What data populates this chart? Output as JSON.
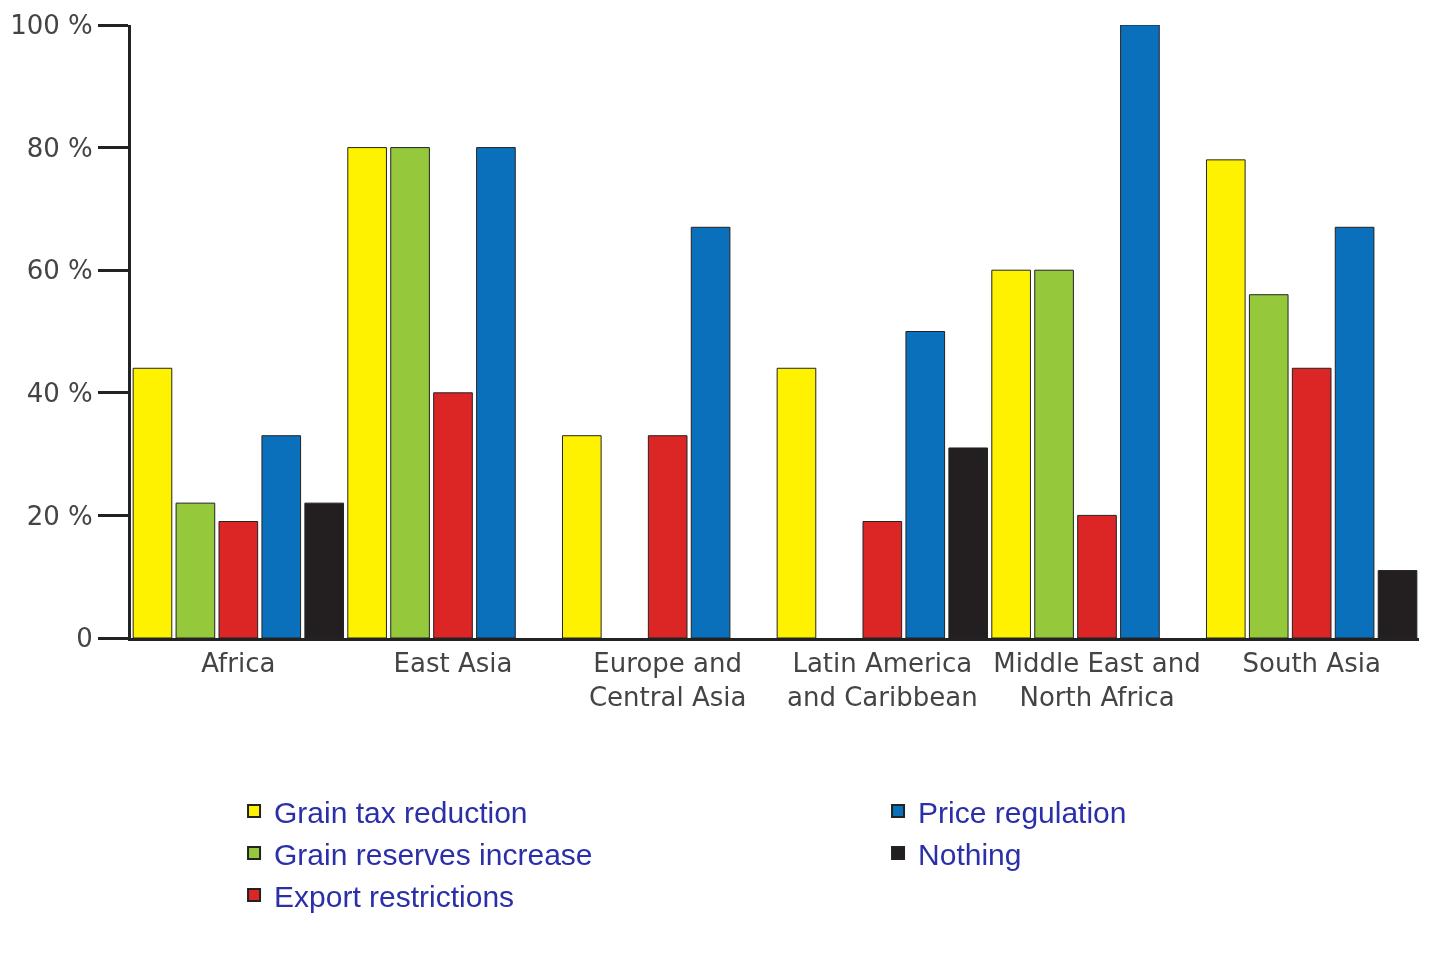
{
  "chart_data": {
    "type": "bar",
    "categories": [
      "Africa",
      "East Asia",
      "Europe and\nCentral Asia",
      "Latin America\nand Caribbean",
      "Middle East and\nNorth Africa",
      "South Asia"
    ],
    "series": [
      {
        "name": "Grain tax reduction",
        "color": "#fff200",
        "values": [
          44,
          80,
          33,
          44,
          60,
          78
        ]
      },
      {
        "name": "Grain reserves increase",
        "color": "#96c83c",
        "values": [
          22,
          80,
          null,
          null,
          60,
          56
        ]
      },
      {
        "name": "Export restrictions",
        "color": "#dc2626",
        "values": [
          19,
          40,
          33,
          19,
          20,
          44
        ]
      },
      {
        "name": "Price regulation",
        "color": "#0b70bb",
        "values": [
          33,
          80,
          67,
          50,
          100,
          67
        ]
      },
      {
        "name": "Nothing",
        "color": "#231f20",
        "values": [
          22,
          null,
          null,
          31,
          null,
          11
        ]
      }
    ],
    "ylim": [
      0,
      100
    ],
    "yticks": [
      {
        "value": 0,
        "label": "0"
      },
      {
        "value": 20,
        "label": "20 %"
      },
      {
        "value": 40,
        "label": "40 %"
      },
      {
        "value": 60,
        "label": "60 %"
      },
      {
        "value": 80,
        "label": "80 %"
      },
      {
        "value": 100,
        "label": "100 %"
      }
    ],
    "legend": "bottom"
  }
}
